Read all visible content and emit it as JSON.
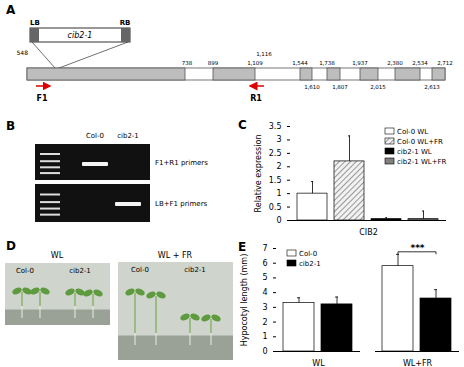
{
  "panel_labels": [
    "A",
    "B",
    "C",
    "D",
    "E"
  ],
  "panels": {
    "A": {
      "tdna": {
        "left_border": "LB",
        "right_border": "RB",
        "name": "cib2-1",
        "site": "548"
      },
      "coords_above": [
        "738",
        "899",
        "1,109",
        "1,544",
        "1,738",
        "1,937",
        "2,380",
        "2,534",
        "2,712"
      ],
      "coord_top": "1,116",
      "coords_below": [
        "1,610",
        "1,807",
        "2,015",
        "2,613"
      ],
      "primers": [
        "F1",
        "R1"
      ]
    },
    "B": {
      "lanes": [
        "Col-0",
        "cib2-1"
      ],
      "gels": [
        "F1+R1 primers",
        "LB+F1 primers"
      ]
    },
    "D": {
      "conditions": [
        {
          "title": "WL",
          "genotypes": [
            "Col-0",
            "cib2-1"
          ]
        },
        {
          "title": "WL + FR",
          "genotypes": [
            "Col-0",
            "cib2-1"
          ]
        }
      ]
    }
  },
  "chart_data": [
    {
      "type": "bar",
      "categories": [
        "CIB2"
      ],
      "y_label": "Relative expression",
      "series": [
        {
          "name": "Col-0 WL",
          "color": "#ffffff",
          "values": [
            1.0
          ],
          "errors": [
            0.45
          ]
        },
        {
          "name": "Col-0 WL+FR",
          "color": "#f2f2f2",
          "values": [
            2.2
          ],
          "errors": [
            0.95
          ]
        },
        {
          "name": "cib2-1 WL",
          "color": "#000000",
          "values": [
            0.05
          ],
          "errors": [
            0.05
          ]
        },
        {
          "name": "cib2-1 WL+FR",
          "color": "#808080",
          "values": [
            0.05
          ],
          "errors": [
            0.3
          ]
        }
      ],
      "ylim": [
        0,
        3.5
      ],
      "yticks": [
        0,
        0.5,
        1,
        1.5,
        2,
        2.5,
        3,
        3.5
      ],
      "legend": "top-right"
    },
    {
      "type": "bar",
      "categories": [
        "WL",
        "WL+FR"
      ],
      "y_label": "Hypocotyl length (mm)",
      "series": [
        {
          "name": "Col-0",
          "color": "#ffffff",
          "values": [
            3.3,
            5.8
          ],
          "errors": [
            0.35,
            0.8
          ]
        },
        {
          "name": "cib2-1",
          "color": "#000000",
          "values": [
            3.2,
            3.6
          ],
          "errors": [
            0.5,
            0.6
          ]
        }
      ],
      "ylim": [
        0,
        7
      ],
      "yticks": [
        0,
        1,
        2,
        3,
        4,
        5,
        6,
        7
      ],
      "legend": "top-left",
      "annotations": [
        {
          "text": "***",
          "category": "WL+FR"
        }
      ]
    }
  ]
}
